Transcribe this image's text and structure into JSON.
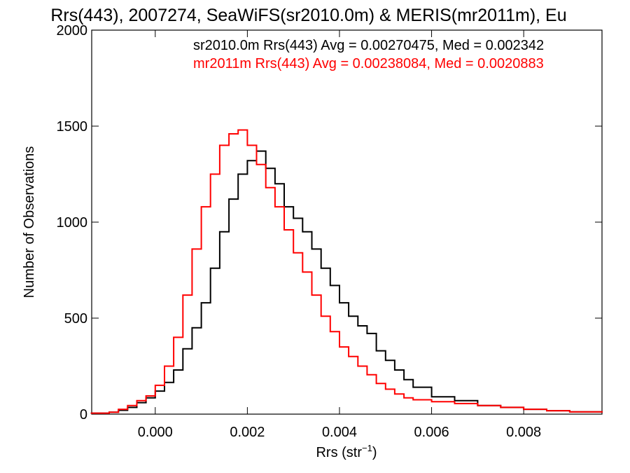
{
  "chart_data": {
    "type": "line",
    "title": "Rrs(443), 2007274, SeaWiFS(sr2010.0m) & MERIS(mr2011m), Eu",
    "xlabel_main": "Rrs (str",
    "xlabel_sup": "−1",
    "xlabel_close": ")",
    "ylabel": "Number of Observations",
    "xlim": [
      -0.00138,
      0.0097
    ],
    "ylim": [
      0,
      2000
    ],
    "xticks": [
      {
        "value": 0.0,
        "label": "0.000"
      },
      {
        "value": 0.002,
        "label": "0.002"
      },
      {
        "value": 0.004,
        "label": "0.004"
      },
      {
        "value": 0.006,
        "label": "0.006"
      },
      {
        "value": 0.008,
        "label": "0.008"
      }
    ],
    "yticks": [
      {
        "value": 0,
        "label": "0"
      },
      {
        "value": 500,
        "label": "500"
      },
      {
        "value": 1000,
        "label": "1000"
      },
      {
        "value": 1500,
        "label": "1500"
      },
      {
        "value": 2000,
        "label": "2000"
      }
    ],
    "grid": false,
    "legend_position": "top-right",
    "series": [
      {
        "name": "sr2010.0m",
        "color": "#000000",
        "label": "sr2010.0m Rrs(443) Avg = 0.00270475, Med = 0.002342",
        "x": [
          -0.0014,
          -0.001,
          -0.0008,
          -0.0006,
          -0.0004,
          -0.0002,
          0.0,
          0.0002,
          0.0004,
          0.0006,
          0.0008,
          0.001,
          0.0012,
          0.0014,
          0.0016,
          0.0018,
          0.002,
          0.0022,
          0.0024,
          0.0026,
          0.0028,
          0.003,
          0.0032,
          0.0034,
          0.0036,
          0.0038,
          0.004,
          0.0042,
          0.0044,
          0.0046,
          0.0048,
          0.005,
          0.0052,
          0.0054,
          0.0056,
          0.006,
          0.0065,
          0.007,
          0.0075,
          0.008,
          0.0085,
          0.009,
          0.0097
        ],
        "y": [
          5,
          10,
          20,
          35,
          60,
          85,
          120,
          165,
          230,
          340,
          450,
          580,
          760,
          950,
          1120,
          1250,
          1320,
          1370,
          1280,
          1200,
          1080,
          1020,
          950,
          860,
          760,
          670,
          580,
          510,
          460,
          420,
          330,
          280,
          230,
          180,
          140,
          90,
          70,
          45,
          35,
          25,
          18,
          12,
          8
        ]
      },
      {
        "name": "mr2011m",
        "color": "#ff0000",
        "label": "mr2011m Rrs(443) Avg = 0.00238084, Med = 0.0020883",
        "x": [
          -0.0014,
          -0.001,
          -0.0008,
          -0.0006,
          -0.0004,
          -0.0002,
          0.0,
          0.0002,
          0.0004,
          0.0006,
          0.0008,
          0.001,
          0.0012,
          0.0014,
          0.0016,
          0.0018,
          0.002,
          0.0022,
          0.0024,
          0.0026,
          0.0028,
          0.003,
          0.0032,
          0.0034,
          0.0036,
          0.0038,
          0.004,
          0.0042,
          0.0044,
          0.0046,
          0.0048,
          0.005,
          0.0052,
          0.0054,
          0.0056,
          0.006,
          0.0065,
          0.007,
          0.0075,
          0.008,
          0.0085,
          0.009,
          0.0097
        ],
        "y": [
          5,
          10,
          25,
          45,
          70,
          95,
          150,
          250,
          400,
          620,
          860,
          1080,
          1250,
          1400,
          1460,
          1480,
          1400,
          1300,
          1180,
          1080,
          960,
          840,
          740,
          620,
          510,
          430,
          350,
          300,
          250,
          205,
          160,
          130,
          105,
          85,
          75,
          65,
          55,
          45,
          35,
          25,
          18,
          12,
          8
        ]
      }
    ]
  }
}
